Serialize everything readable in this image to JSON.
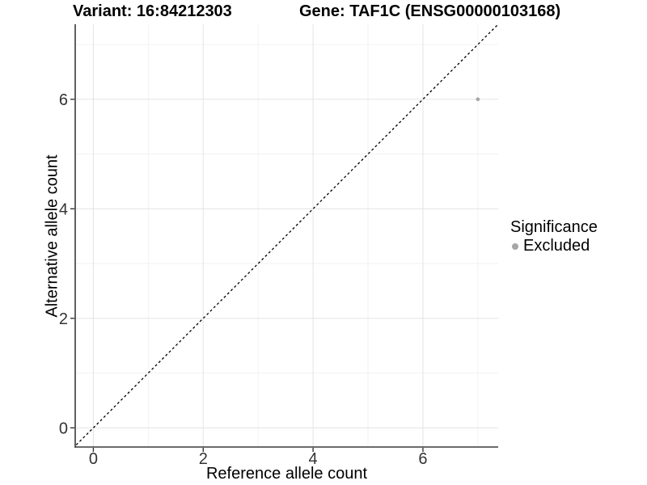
{
  "title": {
    "left": "Variant: 16:84212303",
    "right": "Gene: TAF1C (ENSG00000103168)"
  },
  "chart_data": {
    "type": "scatter",
    "title": "Variant: 16:84212303   Gene: TAF1C (ENSG00000103168)",
    "xlabel": "Reference allele count",
    "ylabel": "Alternative allele count",
    "xlim": [
      -0.33,
      7.37
    ],
    "ylim": [
      -0.35,
      7.37
    ],
    "x_ticks": [
      0,
      2,
      4,
      6
    ],
    "y_ticks": [
      0,
      2,
      4,
      6
    ],
    "x_minor_ticks": [
      1,
      3,
      5,
      7
    ],
    "y_minor_ticks": [
      1,
      3,
      5,
      7
    ],
    "grid": "on",
    "series": [
      {
        "name": "Excluded",
        "color": "#a6a6a6",
        "marker": "circle",
        "marker_radius": 2.3,
        "points": [
          {
            "x": 7,
            "y": 6
          }
        ]
      }
    ],
    "reference_line": {
      "kind": "identity",
      "slope": 1,
      "intercept": 0,
      "line_style": "dashed",
      "color": "#000000"
    },
    "legend": {
      "title": "Significance",
      "position": "right",
      "items": [
        {
          "label": "Excluded",
          "color": "#a6a6a6",
          "marker": "circle"
        }
      ]
    }
  },
  "colors": {
    "background": "#ffffff",
    "grid_major": "#e6e6e6",
    "grid_minor": "#f2f2f2",
    "axis_line": "#3a3a3a",
    "tick_mark": "#343434",
    "tick_label": "#333333",
    "text": "#000000"
  }
}
